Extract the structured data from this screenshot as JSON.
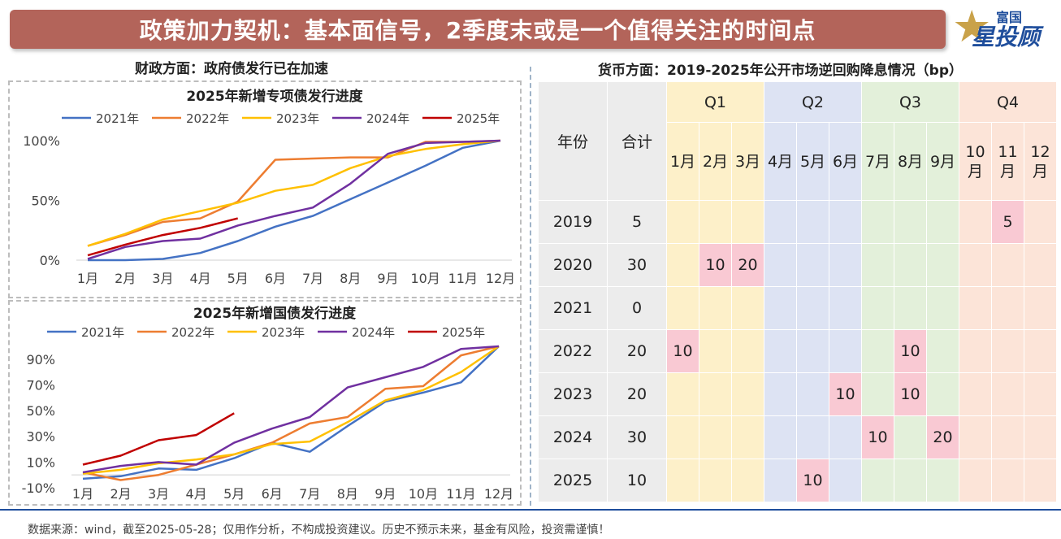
{
  "header": {
    "title": "政策加力契机：基本面信号，2季度末或是一个值得关注的时间点",
    "logo_top": "富国",
    "logo_main": "星投顾",
    "logo_icon": "star-icon"
  },
  "left_section_title": "财政方面：政府债发行已在加速",
  "right_section_title": "货币方面：2019-2025年公开市场逆回购降息情况（bp）",
  "chart_data": [
    {
      "type": "line",
      "title": "2025年新增专项债发行进度",
      "categories": [
        "1月",
        "2月",
        "3月",
        "4月",
        "5月",
        "6月",
        "7月",
        "8月",
        "9月",
        "10月",
        "11月",
        "12月"
      ],
      "y_ticks": [
        "100%",
        "50%",
        "0%"
      ],
      "ylim": [
        0,
        1
      ],
      "legend_position": "top",
      "grid": false,
      "series": [
        {
          "name": "2021年",
          "color": "#4472c4",
          "values": [
            0.0,
            0.0,
            0.01,
            0.06,
            0.16,
            0.28,
            0.37,
            0.51,
            0.65,
            0.79,
            0.94,
            1.0
          ]
        },
        {
          "name": "2022年",
          "color": "#ed7d31",
          "values": [
            0.12,
            0.21,
            0.32,
            0.35,
            0.49,
            0.84,
            0.85,
            0.86,
            0.86,
            0.99,
            0.99,
            1.0
          ]
        },
        {
          "name": "2023年",
          "color": "#ffc000",
          "values": [
            0.12,
            0.22,
            0.34,
            0.41,
            0.48,
            0.58,
            0.63,
            0.77,
            0.87,
            0.93,
            0.97,
            1.0
          ]
        },
        {
          "name": "2024年",
          "color": "#7030a0",
          "values": [
            0.01,
            0.11,
            0.16,
            0.18,
            0.29,
            0.37,
            0.44,
            0.64,
            0.89,
            0.98,
            0.99,
            1.0
          ]
        },
        {
          "name": "2025年",
          "color": "#c00000",
          "values": [
            0.04,
            0.13,
            0.21,
            0.27,
            0.35,
            null,
            null,
            null,
            null,
            null,
            null,
            null
          ]
        }
      ]
    },
    {
      "type": "line",
      "title": "2025年新增国债发行进度",
      "categories": [
        "1月",
        "2月",
        "3月",
        "4月",
        "5月",
        "6月",
        "7月",
        "8月",
        "9月",
        "10月",
        "11月",
        "12月"
      ],
      "y_ticks": [
        "90%",
        "70%",
        "50%",
        "30%",
        "10%",
        "-10%"
      ],
      "ylim": [
        -0.1,
        1.0
      ],
      "legend_position": "top",
      "grid": false,
      "series": [
        {
          "name": "2021年",
          "color": "#4472c4",
          "values": [
            -0.03,
            -0.01,
            0.05,
            0.04,
            0.13,
            0.25,
            0.18,
            0.38,
            0.57,
            0.64,
            0.72,
            1.0
          ]
        },
        {
          "name": "2022年",
          "color": "#ed7d31",
          "values": [
            0.02,
            -0.04,
            0.0,
            0.08,
            0.16,
            0.25,
            0.4,
            0.45,
            0.67,
            0.69,
            0.93,
            1.0
          ]
        },
        {
          "name": "2023年",
          "color": "#ffc000",
          "values": [
            0.01,
            0.04,
            0.09,
            0.12,
            0.16,
            0.24,
            0.26,
            0.41,
            0.58,
            0.66,
            0.8,
            1.0
          ]
        },
        {
          "name": "2024年",
          "color": "#7030a0",
          "values": [
            0.02,
            0.07,
            0.1,
            0.08,
            0.25,
            0.36,
            0.45,
            0.68,
            0.76,
            0.84,
            0.98,
            1.0
          ]
        },
        {
          "name": "2025年",
          "color": "#c00000",
          "values": [
            0.08,
            0.15,
            0.27,
            0.31,
            0.48,
            null,
            null,
            null,
            null,
            null,
            null,
            null
          ]
        }
      ]
    },
    {
      "type": "table",
      "header": {
        "year": "年份",
        "total": "合计",
        "quarters": [
          {
            "label": "Q1",
            "months": [
              "1月",
              "2月",
              "3月"
            ]
          },
          {
            "label": "Q2",
            "months": [
              "4月",
              "5月",
              "6月"
            ]
          },
          {
            "label": "Q3",
            "months": [
              "7月",
              "8月",
              "9月"
            ]
          },
          {
            "label": "Q4",
            "months": [
              "10月",
              "11月",
              "12月"
            ]
          }
        ]
      },
      "quarter_colors": [
        "#fdf0c9",
        "#dde3f3",
        "#e3f0da",
        "#fce4d8"
      ],
      "highlight_color": "#f9c9d3",
      "rows": [
        {
          "year": "2019",
          "total": "5",
          "months": [
            "",
            "",
            "",
            "",
            "",
            "",
            "",
            "",
            "",
            "",
            "5",
            ""
          ]
        },
        {
          "year": "2020",
          "total": "30",
          "months": [
            "",
            "10",
            "20",
            "",
            "",
            "",
            "",
            "",
            "",
            "",
            "",
            ""
          ]
        },
        {
          "year": "2021",
          "total": "0",
          "months": [
            "",
            "",
            "",
            "",
            "",
            "",
            "",
            "",
            "",
            "",
            "",
            ""
          ]
        },
        {
          "year": "2022",
          "total": "20",
          "months": [
            "10",
            "",
            "",
            "",
            "",
            "",
            "",
            "10",
            "",
            "",
            "",
            ""
          ]
        },
        {
          "year": "2023",
          "total": "20",
          "months": [
            "",
            "",
            "",
            "",
            "",
            "10",
            "",
            "10",
            "",
            "",
            "",
            ""
          ]
        },
        {
          "year": "2024",
          "total": "30",
          "months": [
            "",
            "",
            "",
            "",
            "",
            "",
            "10",
            "",
            "20",
            "",
            "",
            ""
          ]
        },
        {
          "year": "2025",
          "total": "10",
          "months": [
            "",
            "",
            "",
            "",
            "10",
            "",
            "",
            "",
            "",
            "",
            "",
            ""
          ]
        }
      ]
    }
  ],
  "footer": "数据来源：wind，截至2025-05-28；仅用作分析，不构成投资建议。历史不预示未来，基金有风险，投资需谨慎！"
}
